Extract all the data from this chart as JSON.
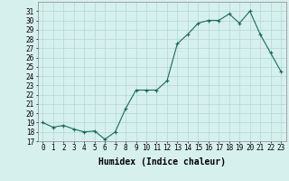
{
  "xlabel": "Humidex (Indice chaleur)",
  "x": [
    0,
    1,
    2,
    3,
    4,
    5,
    6,
    7,
    8,
    9,
    10,
    11,
    12,
    13,
    14,
    15,
    16,
    17,
    18,
    19,
    20,
    21,
    22,
    23
  ],
  "y": [
    19,
    18.5,
    18.7,
    18.3,
    18.0,
    18.1,
    17.2,
    18.0,
    20.5,
    22.5,
    22.5,
    22.5,
    23.5,
    27.5,
    28.5,
    29.7,
    30.0,
    30.0,
    30.7,
    29.7,
    31.0,
    28.5,
    26.5,
    24.5
  ],
  "line_color": "#1a6b5a",
  "marker": "+",
  "background_color": "#d6f0ee",
  "grid_color": "#b0d8d4",
  "ylim": [
    17,
    32
  ],
  "yticks": [
    17,
    18,
    19,
    20,
    21,
    22,
    23,
    24,
    25,
    26,
    27,
    28,
    29,
    30,
    31
  ],
  "xlim": [
    -0.5,
    23.5
  ],
  "xlabel_fontsize": 7,
  "tick_fontsize": 5.5
}
